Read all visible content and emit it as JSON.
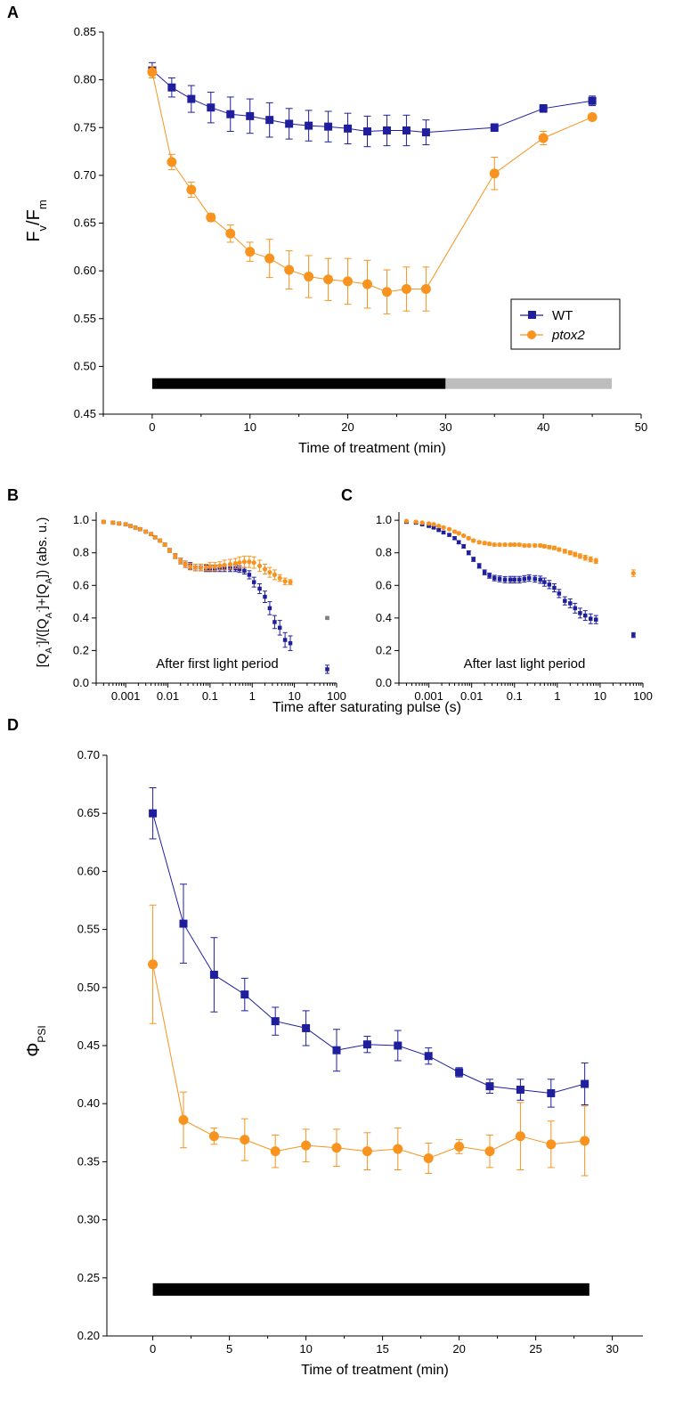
{
  "colors": {
    "wt": "#1f1f9e",
    "ptox2": "#f7931e",
    "dark_bar": "#000000",
    "light_bar": "#bdbdbd",
    "gray_point": "#808080"
  },
  "panel_labels": {
    "a": "A",
    "b": "B",
    "c": "C",
    "d": "D"
  },
  "legend": {
    "wt": "WT",
    "ptox2": "ptox2"
  },
  "chart_data": [
    {
      "panel": "A",
      "type": "line",
      "xlabel": "Time of treatment (min)",
      "ylabel": "Fv/Fm",
      "xlim": [
        -5,
        50
      ],
      "ylim": [
        0.45,
        0.85
      ],
      "xticks": [
        0,
        10,
        20,
        30,
        40,
        50
      ],
      "yticks": [
        "0.45",
        "0.50",
        "0.55",
        "0.60",
        "0.65",
        "0.70",
        "0.75",
        "0.80",
        "0.85"
      ],
      "legend_position": "bottom-right",
      "series": [
        {
          "name": "WT",
          "marker": "square",
          "x": [
            0,
            2,
            4,
            6,
            8,
            10,
            12,
            14,
            16,
            18,
            20,
            22,
            24,
            26,
            28,
            35,
            40,
            45
          ],
          "y": [
            0.81,
            0.792,
            0.78,
            0.771,
            0.764,
            0.762,
            0.758,
            0.754,
            0.752,
            0.751,
            0.749,
            0.746,
            0.747,
            0.747,
            0.745,
            0.75,
            0.77,
            0.778
          ],
          "err": [
            0.008,
            0.01,
            0.014,
            0.016,
            0.018,
            0.018,
            0.018,
            0.016,
            0.016,
            0.016,
            0.016,
            0.016,
            0.016,
            0.016,
            0.013,
            0.004,
            0.004,
            0.005
          ]
        },
        {
          "name": "ptox2",
          "marker": "circle",
          "x": [
            0,
            2,
            4,
            6,
            8,
            10,
            12,
            14,
            16,
            18,
            20,
            22,
            24,
            26,
            28,
            35,
            40,
            45
          ],
          "y": [
            0.808,
            0.714,
            0.685,
            0.656,
            0.639,
            0.62,
            0.613,
            0.601,
            0.594,
            0.591,
            0.589,
            0.586,
            0.578,
            0.581,
            0.581,
            0.702,
            0.739,
            0.761
          ],
          "err": [
            0.006,
            0.008,
            0.008,
            0.004,
            0.009,
            0.01,
            0.02,
            0.02,
            0.022,
            0.022,
            0.024,
            0.025,
            0.023,
            0.023,
            0.023,
            0.017,
            0.007,
            0.003
          ]
        }
      ],
      "bars": [
        {
          "from": 0,
          "to": 30,
          "y": 0.482,
          "color": "dark"
        },
        {
          "from": 30,
          "to": 47,
          "y": 0.482,
          "color": "light"
        }
      ]
    },
    {
      "panel": "B",
      "type": "scatter",
      "xscale": "log",
      "xlim": [
        0.0002,
        100
      ],
      "ylim": [
        0,
        1.05
      ],
      "xticks": [
        "0.001",
        "0.01",
        "0.1",
        "1",
        "10",
        "100"
      ],
      "yticks": [
        "0.0",
        "0.2",
        "0.4",
        "0.6",
        "0.8",
        "1.0"
      ],
      "ylabel": "[QA-]/([QA-]+[QA]) (abs. u.)",
      "annotation": "After first light period",
      "series": [
        {
          "name": "WT",
          "x": [
            0.0003,
            0.0005,
            0.0007,
            0.001,
            0.0013,
            0.0017,
            0.0022,
            0.003,
            0.004,
            0.005,
            0.0065,
            0.0085,
            0.011,
            0.015,
            0.02,
            0.026,
            0.034,
            0.045,
            0.06,
            0.08,
            0.1,
            0.13,
            0.17,
            0.22,
            0.3,
            0.4,
            0.5,
            0.65,
            0.85,
            1.1,
            1.5,
            2,
            2.6,
            3.4,
            4.5,
            6,
            8,
            60
          ],
          "y": [
            0.99,
            0.985,
            0.98,
            0.975,
            0.965,
            0.955,
            0.945,
            0.93,
            0.915,
            0.895,
            0.875,
            0.85,
            0.815,
            0.78,
            0.75,
            0.73,
            0.72,
            0.71,
            0.71,
            0.705,
            0.705,
            0.705,
            0.705,
            0.705,
            0.705,
            0.705,
            0.7,
            0.69,
            0.665,
            0.62,
            0.58,
            0.53,
            0.46,
            0.375,
            0.34,
            0.265,
            0.245,
            0.085
          ],
          "err": [
            0.005,
            0.005,
            0.005,
            0.005,
            0.005,
            0.005,
            0.005,
            0.005,
            0.006,
            0.006,
            0.008,
            0.01,
            0.012,
            0.015,
            0.018,
            0.02,
            0.02,
            0.02,
            0.02,
            0.02,
            0.02,
            0.02,
            0.02,
            0.02,
            0.02,
            0.02,
            0.02,
            0.02,
            0.025,
            0.03,
            0.03,
            0.035,
            0.04,
            0.04,
            0.045,
            0.045,
            0.045,
            0.025
          ]
        },
        {
          "name": "ptox2",
          "x": [
            0.0003,
            0.0005,
            0.0007,
            0.001,
            0.0013,
            0.0017,
            0.0022,
            0.003,
            0.004,
            0.005,
            0.0065,
            0.0085,
            0.011,
            0.015,
            0.02,
            0.026,
            0.034,
            0.045,
            0.06,
            0.08,
            0.1,
            0.13,
            0.17,
            0.22,
            0.3,
            0.4,
            0.5,
            0.65,
            0.85,
            1.1,
            1.5,
            2,
            2.6,
            3.4,
            4.5,
            6,
            8
          ],
          "y": [
            0.99,
            0.985,
            0.98,
            0.975,
            0.965,
            0.955,
            0.945,
            0.93,
            0.915,
            0.895,
            0.875,
            0.85,
            0.815,
            0.78,
            0.75,
            0.73,
            0.715,
            0.71,
            0.71,
            0.71,
            0.715,
            0.715,
            0.72,
            0.725,
            0.73,
            0.735,
            0.74,
            0.745,
            0.745,
            0.74,
            0.72,
            0.7,
            0.68,
            0.665,
            0.645,
            0.625,
            0.62
          ],
          "err": [
            0.005,
            0.005,
            0.005,
            0.005,
            0.005,
            0.005,
            0.005,
            0.005,
            0.006,
            0.006,
            0.008,
            0.01,
            0.012,
            0.015,
            0.018,
            0.02,
            0.02,
            0.02,
            0.02,
            0.02,
            0.025,
            0.025,
            0.025,
            0.03,
            0.03,
            0.03,
            0.035,
            0.035,
            0.035,
            0.035,
            0.035,
            0.03,
            0.03,
            0.03,
            0.02,
            0.02,
            0.015
          ]
        },
        {
          "name": "",
          "x": [
            60
          ],
          "y": [
            0.4
          ],
          "err": [
            0.005
          ],
          "color": "gray"
        }
      ]
    },
    {
      "panel": "C",
      "type": "scatter",
      "xscale": "log",
      "xlim": [
        0.0002,
        100
      ],
      "ylim": [
        0,
        1.05
      ],
      "xticks": [
        "0.001",
        "0.01",
        "0.1",
        "1",
        "10",
        "100"
      ],
      "yticks": [
        "0.0",
        "0.2",
        "0.4",
        "0.6",
        "0.8",
        "1.0"
      ],
      "annotation": "After last light period",
      "shared_xlabel": "Time after saturating pulse (s)",
      "series": [
        {
          "name": "WT",
          "x": [
            0.0003,
            0.0005,
            0.0007,
            0.001,
            0.0013,
            0.0017,
            0.0022,
            0.003,
            0.004,
            0.005,
            0.0065,
            0.0085,
            0.011,
            0.015,
            0.02,
            0.026,
            0.034,
            0.045,
            0.06,
            0.08,
            0.1,
            0.13,
            0.17,
            0.22,
            0.3,
            0.4,
            0.5,
            0.65,
            0.85,
            1.1,
            1.5,
            2,
            2.6,
            3.4,
            4.5,
            6,
            8,
            60
          ],
          "y": [
            0.99,
            0.985,
            0.975,
            0.965,
            0.955,
            0.94,
            0.925,
            0.91,
            0.89,
            0.865,
            0.84,
            0.8,
            0.76,
            0.72,
            0.68,
            0.66,
            0.645,
            0.64,
            0.635,
            0.635,
            0.635,
            0.635,
            0.64,
            0.645,
            0.64,
            0.635,
            0.62,
            0.605,
            0.585,
            0.55,
            0.505,
            0.49,
            0.46,
            0.43,
            0.415,
            0.395,
            0.39,
            0.295
          ],
          "err": [
            0.005,
            0.005,
            0.005,
            0.005,
            0.006,
            0.006,
            0.007,
            0.008,
            0.009,
            0.01,
            0.011,
            0.012,
            0.013,
            0.014,
            0.015,
            0.016,
            0.017,
            0.018,
            0.019,
            0.02,
            0.02,
            0.02,
            0.02,
            0.02,
            0.02,
            0.022,
            0.025,
            0.025,
            0.025,
            0.025,
            0.025,
            0.027,
            0.03,
            0.03,
            0.03,
            0.03,
            0.025,
            0.015
          ]
        },
        {
          "name": "ptox2",
          "x": [
            0.0003,
            0.0005,
            0.0007,
            0.001,
            0.0013,
            0.0017,
            0.0022,
            0.003,
            0.004,
            0.005,
            0.0065,
            0.0085,
            0.011,
            0.015,
            0.02,
            0.026,
            0.034,
            0.045,
            0.06,
            0.08,
            0.1,
            0.13,
            0.17,
            0.22,
            0.3,
            0.4,
            0.5,
            0.65,
            0.85,
            1.1,
            1.5,
            2,
            2.6,
            3.4,
            4.5,
            6,
            8,
            60
          ],
          "y": [
            0.995,
            0.99,
            0.985,
            0.98,
            0.975,
            0.965,
            0.955,
            0.945,
            0.93,
            0.92,
            0.905,
            0.89,
            0.875,
            0.865,
            0.86,
            0.855,
            0.85,
            0.85,
            0.85,
            0.85,
            0.85,
            0.85,
            0.845,
            0.845,
            0.845,
            0.845,
            0.84,
            0.835,
            0.83,
            0.82,
            0.81,
            0.8,
            0.79,
            0.78,
            0.77,
            0.76,
            0.75,
            0.675
          ],
          "err": [
            0.004,
            0.004,
            0.004,
            0.004,
            0.004,
            0.005,
            0.005,
            0.005,
            0.006,
            0.006,
            0.006,
            0.007,
            0.007,
            0.008,
            0.008,
            0.008,
            0.008,
            0.008,
            0.008,
            0.008,
            0.008,
            0.008,
            0.008,
            0.008,
            0.008,
            0.008,
            0.009,
            0.01,
            0.01,
            0.01,
            0.012,
            0.012,
            0.013,
            0.014,
            0.015,
            0.015,
            0.015,
            0.02
          ]
        }
      ]
    },
    {
      "panel": "D",
      "type": "line",
      "xlabel": "Time of treatment (min)",
      "ylabel": "ΦPSI",
      "xlim": [
        -3,
        32
      ],
      "ylim": [
        0.2,
        0.7
      ],
      "xticks": [
        0,
        5,
        10,
        15,
        20,
        25,
        30
      ],
      "yticks": [
        "0.20",
        "0.25",
        "0.30",
        "0.35",
        "0.40",
        "0.45",
        "0.50",
        "0.55",
        "0.60",
        "0.65",
        "0.70"
      ],
      "series": [
        {
          "name": "WT",
          "marker": "square",
          "x": [
            0,
            2,
            4,
            6,
            8,
            10,
            12,
            14,
            16,
            18,
            20,
            22,
            24,
            26,
            28.2
          ],
          "y": [
            0.65,
            0.555,
            0.511,
            0.494,
            0.471,
            0.465,
            0.446,
            0.451,
            0.45,
            0.441,
            0.427,
            0.415,
            0.412,
            0.409,
            0.417
          ],
          "err": [
            0.022,
            0.034,
            0.032,
            0.014,
            0.012,
            0.015,
            0.018,
            0.007,
            0.013,
            0.007,
            0.004,
            0.006,
            0.009,
            0.012,
            0.018
          ]
        },
        {
          "name": "ptox2",
          "marker": "circle",
          "x": [
            0,
            2,
            4,
            6,
            8,
            10,
            12,
            14,
            16,
            18,
            20,
            22,
            24,
            26,
            28.2
          ],
          "y": [
            0.52,
            0.386,
            0.372,
            0.369,
            0.359,
            0.364,
            0.362,
            0.359,
            0.361,
            0.353,
            0.363,
            0.359,
            0.372,
            0.365,
            0.368
          ],
          "err": [
            0.051,
            0.024,
            0.007,
            0.018,
            0.014,
            0.014,
            0.016,
            0.016,
            0.018,
            0.013,
            0.006,
            0.014,
            0.029,
            0.02,
            0.03
          ]
        }
      ],
      "bars": [
        {
          "from": 0,
          "to": 28.5,
          "y": 0.24,
          "color": "dark"
        }
      ]
    }
  ]
}
